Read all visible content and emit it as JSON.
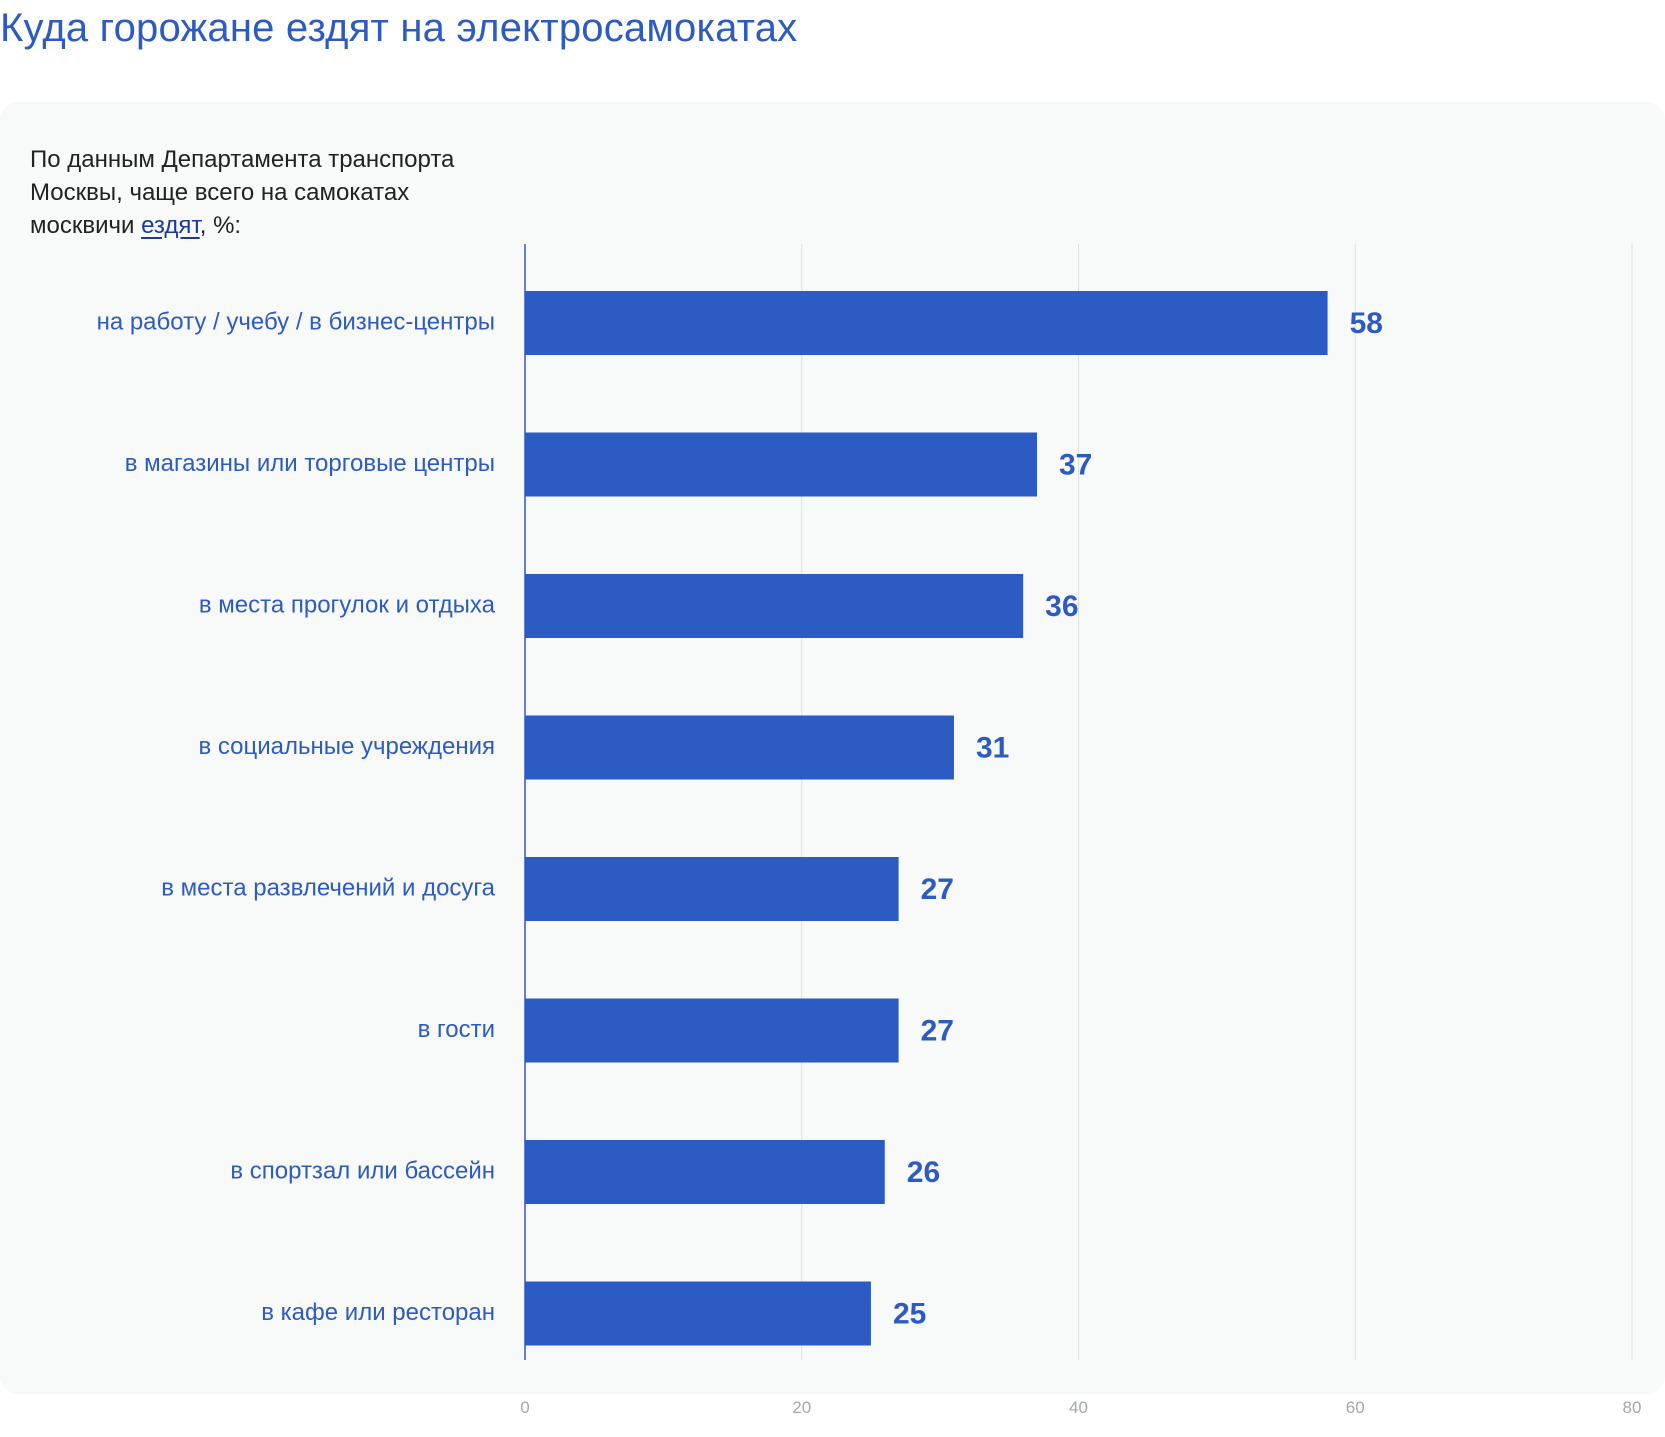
{
  "header": {
    "title": "Куда горожане ездят на электросамокатах"
  },
  "subtitle": {
    "text_before": "По данным Департамента транспорта Москвы, чаще всего на самокатах москвичи ",
    "link_text": "ездят",
    "text_after": ", %:"
  },
  "colors": {
    "accent": "#2d5bc4",
    "bar": "#2d5bc4",
    "grid": "#dcdfe2",
    "tick": "#a3a8ad",
    "card_bg": "#f8f9f9"
  },
  "chart_data": {
    "type": "bar",
    "orientation": "horizontal",
    "title": "Куда горожане ездят на электросамокатах",
    "xlabel": "",
    "ylabel": "",
    "xlim": [
      0,
      80
    ],
    "ticks": [
      0,
      20,
      40,
      60,
      80
    ],
    "grid": true,
    "legend": "none",
    "categories": [
      "на работу / учебу / в бизнес-центры",
      "в магазины или торговые центры",
      "в места прогулок и отдыха",
      "в социальные учреждения",
      "в места развлечений и досуга",
      "в гости",
      "в спортзал или бассейн",
      "в кафе или ресторан"
    ],
    "values": [
      58,
      37,
      36,
      31,
      27,
      27,
      26,
      25
    ]
  }
}
